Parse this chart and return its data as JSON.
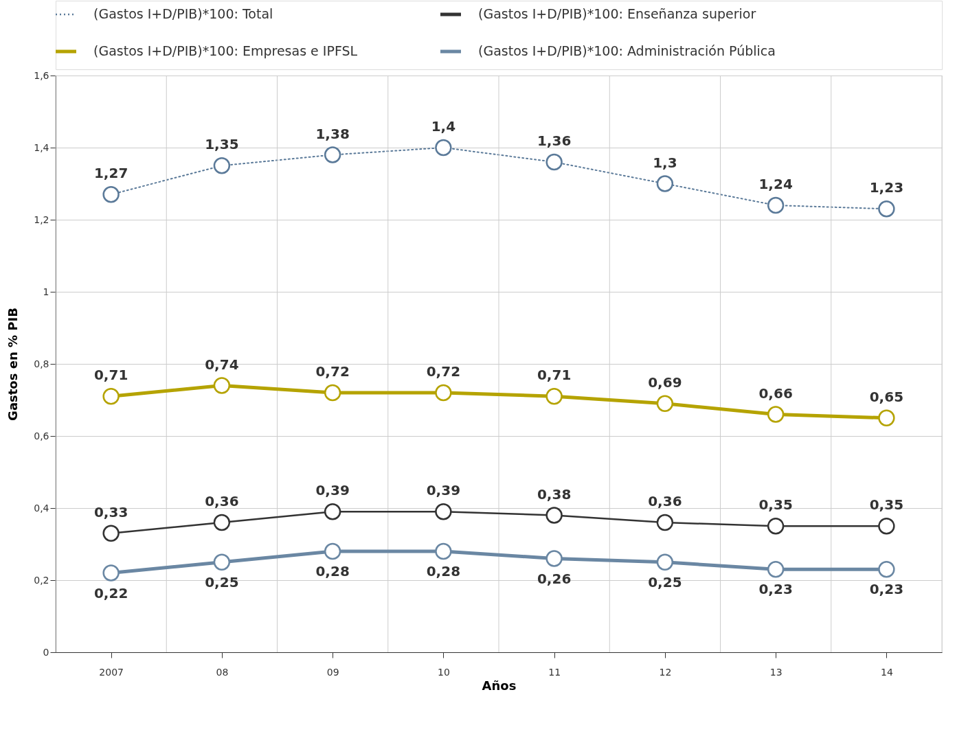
{
  "chart_data": {
    "type": "line",
    "xlabel": "Años",
    "ylabel": "Gastos en % PIB",
    "categories": [
      "2007",
      "08",
      "09",
      "10",
      "11",
      "12",
      "13",
      "14"
    ],
    "ylim": [
      0,
      1.6
    ],
    "yticks": [
      0,
      {
        "value": 0.2,
        "label": "0,2"
      },
      {
        "value": 0.4,
        "label": "0,4"
      },
      {
        "value": 0.6,
        "label": "0,6"
      },
      {
        "value": 0.8,
        "label": "0,8"
      },
      1,
      {
        "value": 1.2,
        "label": "1,2"
      },
      {
        "value": 1.4,
        "label": "1,4"
      },
      {
        "value": 1.6,
        "label": "1,6"
      }
    ],
    "grid": true,
    "legend": "top left",
    "marker": "circle",
    "series": [
      {
        "name": "(Gastos I+D/PIB)*100: Total",
        "color": "#5b7a99",
        "line_style": "dotted",
        "values": [
          1.27,
          1.35,
          1.38,
          1.4,
          1.36,
          1.3,
          1.24,
          1.23
        ],
        "value_labels": [
          "1,27",
          "1,35",
          "1,38",
          "1,4",
          "1,36",
          "1,3",
          "1,24",
          "1,23"
        ]
      },
      {
        "name": "(Gastos I+D/PIB)*100: Enseñanza superior",
        "color": "#333333",
        "line_style": "solid",
        "values": [
          0.33,
          0.36,
          0.39,
          0.39,
          0.38,
          0.36,
          0.35,
          0.35
        ],
        "value_labels": [
          "0,33",
          "0,36",
          "0,39",
          "0,39",
          "0,38",
          "0,36",
          "0,35",
          "0,35"
        ]
      },
      {
        "name": "(Gastos I+D/PIB)*100: Empresas e IPFSL",
        "color": "#b5a300",
        "line_style": "solid",
        "values": [
          0.71,
          0.74,
          0.72,
          0.72,
          0.71,
          0.69,
          0.66,
          0.65
        ],
        "value_labels": [
          "0,71",
          "0,74",
          "0,72",
          "0,72",
          "0,71",
          "0,69",
          "0,66",
          "0,65"
        ]
      },
      {
        "name": "(Gastos I+D/PIB)*100: Administración Pública",
        "color": "#6a87a3",
        "line_style": "solid",
        "values": [
          0.22,
          0.25,
          0.28,
          0.28,
          0.26,
          0.25,
          0.23,
          0.23
        ],
        "value_labels": [
          "0,22",
          "0,25",
          "0,28",
          "0,28",
          "0,26",
          "0,25",
          "0,23",
          "0,23"
        ]
      }
    ]
  }
}
